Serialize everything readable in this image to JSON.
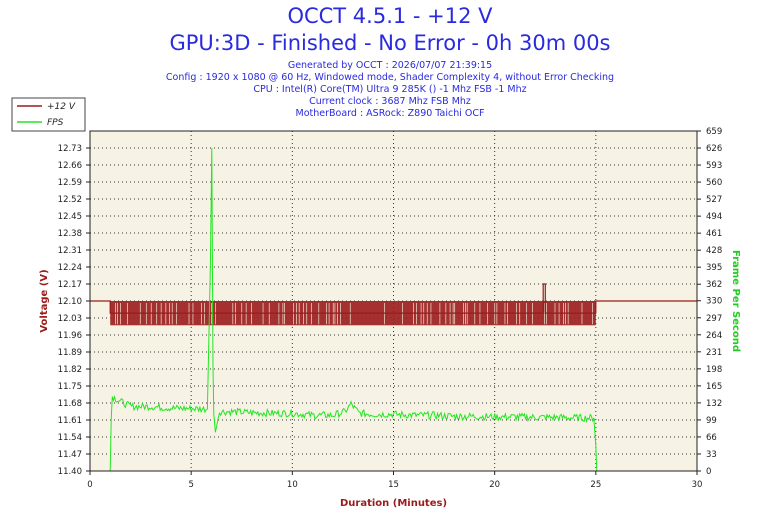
{
  "header": {
    "title": "OCCT 4.5.1 - +12 V",
    "subtitle": "GPU:3D - Finished - No Error - 0h 30m 00s",
    "info_lines": [
      "Generated by OCCT : 2026/07/07 21:39:15",
      "Config : 1920 x 1080 @ 60 Hz, Windowed mode, Shader Complexity 4, without Error Checking",
      "CPU : Intel(R) Core(TM) Ultra 9 285K () -1 Mhz FSB -1 Mhz",
      "Current clock : 3687 Mhz FSB  Mhz",
      "MotherBoard : ASRock: Z890 Taichi OCF"
    ]
  },
  "colors": {
    "voltage": "#9b1b1b",
    "fps": "#22e622",
    "plot_bg": "#f6f3e4",
    "text_blue": "#2a2adf",
    "axis_left": "#9b1b1b",
    "axis_right": "#22cc22"
  },
  "chart_data": {
    "type": "line",
    "title": "OCCT 4.5.1 - +12 V",
    "xlabel": "Duration (Minutes)",
    "ylabel": "Voltage (V)",
    "y2label": "Frame Per Second",
    "xlim": [
      0,
      30
    ],
    "ylim": [
      11.4,
      12.8
    ],
    "y2lim": [
      0,
      659
    ],
    "x_ticks": [
      0,
      5,
      10,
      15,
      20,
      25,
      30
    ],
    "y_ticks": [
      "11.40",
      "11.47",
      "11.54",
      "11.61",
      "11.68",
      "11.75",
      "11.82",
      "11.89",
      "11.96",
      "12.03",
      "12.10",
      "12.17",
      "12.24",
      "12.31",
      "12.38",
      "12.45",
      "12.52",
      "12.59",
      "12.66",
      "12.73"
    ],
    "y2_ticks": [
      "0",
      "33",
      "66",
      "99",
      "132",
      "165",
      "198",
      "231",
      "264",
      "297",
      "330",
      "362",
      "395",
      "428",
      "461",
      "494",
      "527",
      "560",
      "593",
      "626",
      "659"
    ],
    "legend": {
      "placement": "top-left",
      "entries": [
        "+12 V",
        "FPS"
      ]
    },
    "grid": true,
    "series": [
      {
        "name": "+12 V",
        "axis": "left",
        "x": [
          0,
          1.0,
          1.0,
          22.4,
          22.4,
          22.5,
          22.5,
          25.0,
          25.0,
          30
        ],
        "values": [
          12.1,
          12.1,
          12.05,
          12.05,
          12.17,
          12.17,
          12.05,
          12.05,
          12.1,
          12.1
        ],
        "band": {
          "x_start": 1.0,
          "x_end": 25.0,
          "low": 12.0,
          "high": 12.1,
          "note": "rapid oscillation"
        }
      },
      {
        "name": "FPS",
        "axis": "right",
        "x": [
          1.0,
          1.05,
          1.1,
          1.5,
          2.0,
          3.0,
          4.0,
          5.0,
          5.8,
          5.95,
          6.02,
          6.08,
          6.12,
          6.2,
          6.4,
          7.0,
          8.0,
          9.0,
          10.0,
          11.0,
          12.0,
          12.6,
          12.9,
          13.3,
          14.0,
          15.0,
          16.0,
          17.0,
          18.0,
          19.0,
          20.0,
          21.0,
          22.0,
          23.0,
          24.0,
          24.9,
          25.0,
          25.05
        ],
        "values": [
          0,
          100,
          145,
          135,
          125,
          125,
          122,
          121,
          120,
          400,
          626,
          200,
          110,
          75,
          115,
          115,
          113,
          112,
          112,
          108,
          108,
          115,
          130,
          112,
          110,
          110,
          108,
          108,
          106,
          106,
          105,
          105,
          104,
          104,
          103,
          103,
          50,
          0
        ]
      }
    ]
  }
}
